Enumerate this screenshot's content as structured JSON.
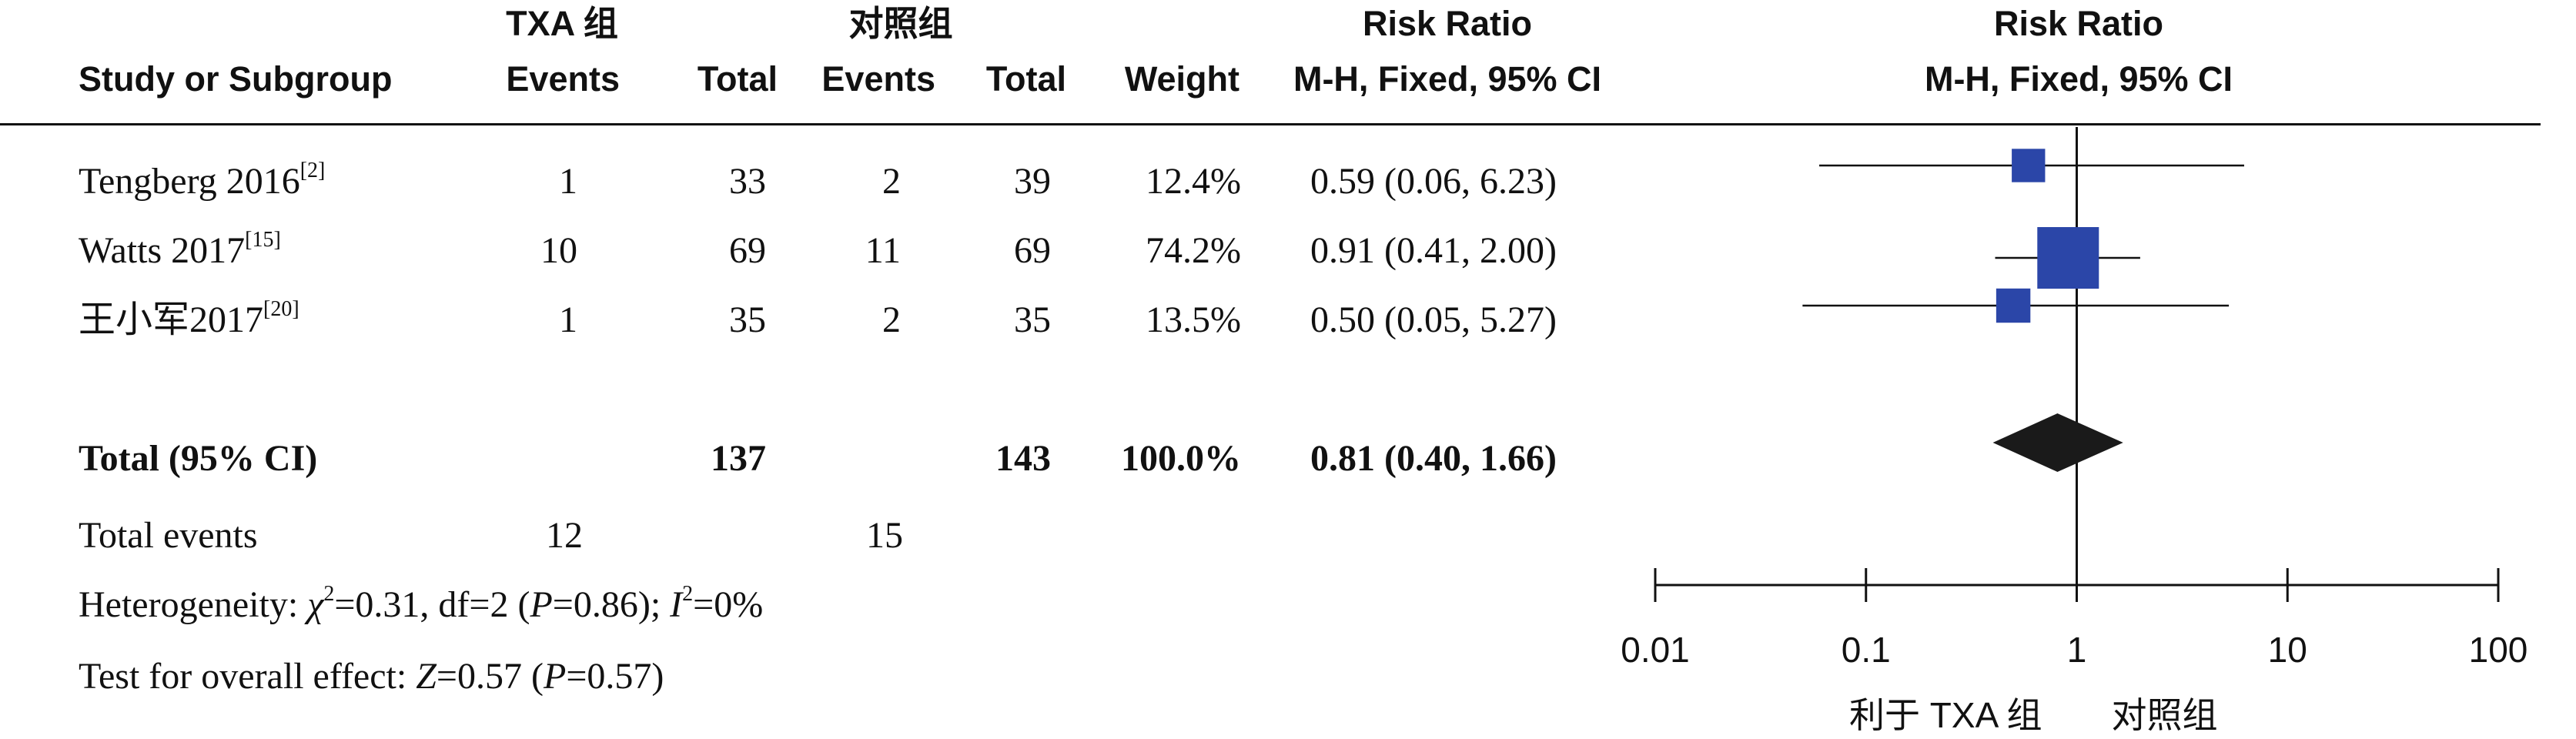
{
  "headers": {
    "study": "Study or Subgroup",
    "group1": "TXA 组",
    "group2": "对照组",
    "events": "Events",
    "total": "Total",
    "weight": "Weight",
    "rr_title": "Risk Ratio",
    "rr_method": "M-H, Fixed, 95% CI",
    "plot_title": "Risk Ratio",
    "plot_method": "M-H, Fixed, 95% CI"
  },
  "studies": [
    {
      "name": "Tengberg 2016",
      "ref": "[2]",
      "e1": "1",
      "n1": "33",
      "e2": "2",
      "n2": "39",
      "weight": "12.4%",
      "ci_text": "0.59 (0.06, 6.23)"
    },
    {
      "name": "Watts 2017",
      "ref": "[15]",
      "e1": "10",
      "n1": "69",
      "e2": "11",
      "n2": "69",
      "weight": "74.2%",
      "ci_text": "0.91 (0.41, 2.00)"
    },
    {
      "name": "王小军2017",
      "ref": "[20]",
      "e1": "1",
      "n1": "35",
      "e2": "2",
      "n2": "35",
      "weight": "13.5%",
      "ci_text": "0.50 (0.05, 5.27)"
    }
  ],
  "total": {
    "label": "Total (95% CI)",
    "n1": "137",
    "n2": "143",
    "weight": "100.0%",
    "ci_text": "0.81 (0.40, 1.66)"
  },
  "total_events": {
    "label": "Total events",
    "e1": "12",
    "e2": "15"
  },
  "heterogeneity": {
    "prefix": "Heterogeneity: ",
    "chi": "χ",
    "chi_rest": "=0.31, df=2 (",
    "p": "P",
    "p_rest": "=0.86); ",
    "i": "I",
    "i_rest": "=0%"
  },
  "overall": {
    "prefix": "Test for overall effect: ",
    "z": "Z",
    "z_rest": "=0.57 (",
    "p": "P",
    "p_rest": "=0.57)"
  },
  "chart_data": {
    "type": "forest",
    "scale": "log",
    "xlim": [
      0.01,
      100
    ],
    "ticks": [
      0.01,
      0.1,
      1,
      10,
      100
    ],
    "tick_labels": [
      "0.01",
      "0.1",
      "1",
      "10",
      "100"
    ],
    "null_line": 1,
    "favours_left": "利于 TXA 组",
    "favours_right": "对照组",
    "studies": [
      {
        "rr": 0.59,
        "lo": 0.06,
        "hi": 6.23,
        "weight": 12.4
      },
      {
        "rr": 0.91,
        "lo": 0.41,
        "hi": 2.0,
        "weight": 74.2
      },
      {
        "rr": 0.5,
        "lo": 0.05,
        "hi": 5.27,
        "weight": 13.5
      }
    ],
    "total": {
      "rr": 0.81,
      "lo": 0.4,
      "hi": 1.66
    },
    "colors": {
      "box": "#2b46a8",
      "diamond": "#1a1a1a",
      "line": "#111111"
    }
  }
}
